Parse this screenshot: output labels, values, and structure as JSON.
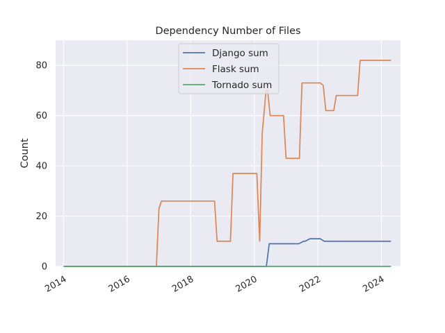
{
  "chart_data": {
    "type": "line",
    "title": "Dependency Number of Files",
    "xlabel": "",
    "ylabel": "Count",
    "xlim": [
      2013.75,
      2024.6
    ],
    "ylim": [
      0,
      90
    ],
    "xticks": [
      2014,
      2016,
      2018,
      2020,
      2022,
      2024
    ],
    "xtick_labels": [
      "2014",
      "2016",
      "2018",
      "2020",
      "2022",
      "2024"
    ],
    "yticks": [
      0,
      20,
      40,
      60,
      80
    ],
    "ytick_labels": [
      "0",
      "20",
      "40",
      "60",
      "80"
    ],
    "grid": true,
    "legend_position": "upper-center",
    "background": "#eaeaf2",
    "series": [
      {
        "name": "Django sum",
        "color": "#4c72b0",
        "x": [
          2014.0,
          2020.37,
          2020.38,
          2020.47,
          2021.4,
          2021.55,
          2021.6,
          2021.75,
          2022.0,
          2022.08,
          2022.2,
          2023.0,
          2024.3
        ],
        "y": [
          0,
          0,
          0,
          9,
          9,
          10,
          10,
          11,
          11,
          11,
          10,
          10,
          10
        ]
      },
      {
        "name": "Flask sum",
        "color": "#dd8452",
        "x": [
          2014.0,
          2016.92,
          2017.0,
          2017.08,
          2018.0,
          2018.75,
          2018.83,
          2019.25,
          2019.33,
          2020.0,
          2020.08,
          2020.17,
          2020.25,
          2020.37,
          2020.42,
          2020.5,
          2020.92,
          2021.0,
          2021.42,
          2021.5,
          2022.08,
          2022.17,
          2022.25,
          2022.5,
          2022.58,
          2023.25,
          2023.33,
          2024.3
        ],
        "y": [
          0,
          0,
          23,
          26,
          26,
          26,
          10,
          10,
          37,
          37,
          37,
          10,
          53,
          70,
          70,
          60,
          60,
          43,
          43,
          73,
          73,
          72,
          62,
          62,
          68,
          68,
          82,
          82
        ]
      },
      {
        "name": "Tornado sum",
        "color": "#55a868",
        "x": [
          2014.0,
          2024.3
        ],
        "y": [
          0,
          0
        ]
      }
    ]
  }
}
